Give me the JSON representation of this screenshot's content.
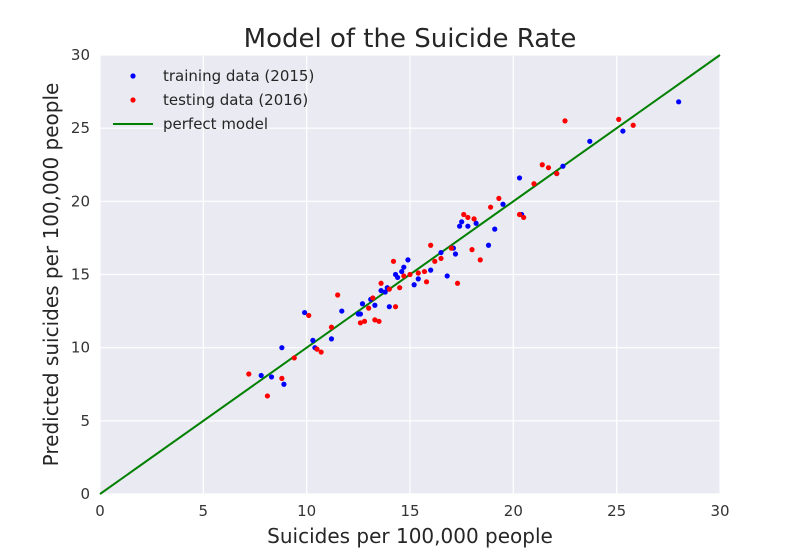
{
  "chart_data": {
    "type": "scatter",
    "title": "Model of the Suicide Rate",
    "xlabel": "Suicides per 100,000 people",
    "ylabel": "Predicted suicides per 100,000 people",
    "xlim": [
      0,
      30
    ],
    "ylim": [
      0,
      30
    ],
    "xticks": [
      0,
      5,
      10,
      15,
      20,
      25,
      30
    ],
    "yticks": [
      0,
      5,
      10,
      15,
      20,
      25,
      30
    ],
    "grid": true,
    "legend_position": "top-left",
    "series": [
      {
        "name": "training data (2015)",
        "kind": "points",
        "color": "#0000ff",
        "x": [
          7.8,
          8.3,
          8.8,
          8.9,
          9.9,
          10.3,
          10.4,
          11.2,
          11.7,
          12.5,
          12.6,
          12.7,
          13.1,
          13.3,
          13.6,
          13.8,
          13.9,
          14.0,
          14.3,
          14.4,
          14.6,
          14.7,
          14.9,
          15.2,
          15.4,
          16.0,
          16.5,
          16.8,
          17.1,
          17.2,
          17.4,
          17.5,
          17.8,
          18.2,
          18.8,
          19.1,
          19.5,
          20.3,
          20.4,
          22.1,
          22.4,
          23.7,
          25.3,
          28.0
        ],
        "y": [
          8.1,
          8.0,
          10.0,
          7.5,
          12.4,
          10.5,
          10.0,
          10.6,
          12.5,
          12.3,
          12.3,
          13.0,
          13.3,
          12.9,
          13.9,
          13.8,
          14.1,
          12.8,
          15.0,
          14.8,
          15.2,
          15.5,
          16.0,
          14.3,
          14.7,
          15.3,
          16.5,
          14.9,
          16.8,
          16.4,
          18.3,
          18.6,
          18.3,
          18.5,
          17.0,
          18.1,
          19.8,
          21.6,
          19.1,
          21.9,
          22.4,
          24.1,
          24.8,
          26.8
        ]
      },
      {
        "name": "testing data (2016)",
        "kind": "points",
        "color": "#ff0000",
        "x": [
          7.2,
          8.1,
          8.8,
          9.4,
          10.1,
          10.5,
          10.7,
          11.2,
          11.5,
          12.6,
          12.8,
          13.0,
          13.2,
          13.3,
          13.5,
          13.6,
          14.0,
          14.2,
          14.3,
          14.5,
          14.7,
          15.0,
          15.4,
          15.7,
          15.8,
          16.0,
          16.2,
          16.5,
          17.0,
          17.3,
          17.6,
          17.8,
          18.0,
          18.1,
          18.4,
          18.9,
          19.3,
          20.3,
          20.5,
          21.0,
          21.4,
          21.7,
          22.1,
          22.5,
          25.1,
          25.8
        ],
        "y": [
          8.2,
          6.7,
          7.9,
          9.3,
          12.2,
          9.9,
          9.7,
          11.4,
          13.6,
          11.7,
          11.8,
          12.7,
          13.4,
          11.9,
          11.8,
          14.4,
          14.0,
          15.9,
          12.8,
          14.1,
          14.9,
          15.0,
          15.1,
          15.2,
          14.5,
          17.0,
          15.9,
          16.1,
          16.8,
          14.4,
          19.1,
          18.9,
          16.7,
          18.8,
          16.0,
          19.6,
          20.2,
          19.1,
          18.9,
          21.2,
          22.5,
          22.3,
          21.9,
          25.5,
          25.6,
          25.2
        ]
      },
      {
        "name": "perfect model",
        "kind": "line",
        "color": "#008000",
        "x": [
          0,
          30
        ],
        "y": [
          0,
          30
        ]
      }
    ]
  }
}
